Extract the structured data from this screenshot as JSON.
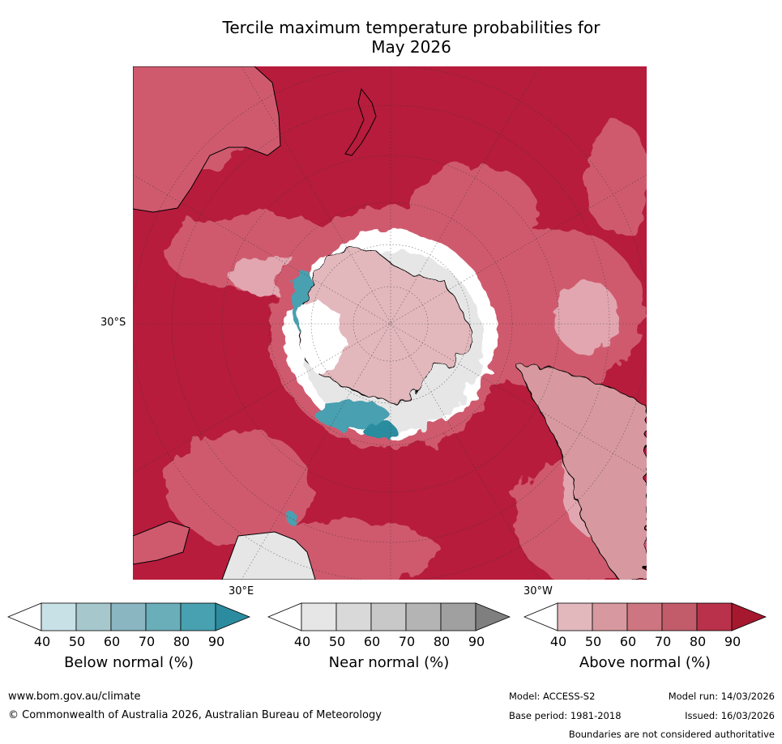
{
  "title": {
    "line1": "Tercile maximum temperature probabilities for",
    "line2": "May 2026"
  },
  "map": {
    "projection": "south-polar-stereographic",
    "lat_labels": [
      "30°S"
    ],
    "lon_labels": [
      "30°E",
      "30°W"
    ],
    "region_colors": {
      "strong_above": "#b71c3c",
      "above": "#cf5a6e",
      "mild_above": "#e2a6b0",
      "near": "#e6e6e6",
      "below": "#4aa0b0",
      "white": "#ffffff"
    }
  },
  "colorbars": [
    {
      "title": "Below normal (%)",
      "ticks": [
        "40",
        "50",
        "60",
        "70",
        "80",
        "90"
      ],
      "colors": [
        "#ffffff",
        "#c8e1e7",
        "#a6c8cd",
        "#8ab6c2",
        "#6aaeba",
        "#48a1b0",
        "#2b8c9f"
      ]
    },
    {
      "title": "Near normal (%)",
      "ticks": [
        "40",
        "50",
        "60",
        "70",
        "80",
        "90"
      ],
      "colors": [
        "#ffffff",
        "#e6e6e6",
        "#d9d9d9",
        "#c8c8c8",
        "#b4b4b4",
        "#a0a0a0",
        "#7f7f7f"
      ]
    },
    {
      "title": "Above normal (%)",
      "ticks": [
        "40",
        "50",
        "60",
        "70",
        "80",
        "90"
      ],
      "colors": [
        "#ffffff",
        "#e2b8bd",
        "#d7999f",
        "#cd7580",
        "#c35c6a",
        "#b9314a",
        "#a6182e"
      ]
    }
  ],
  "footer": {
    "url": "www.bom.gov.au/climate",
    "copyright": "© Commonwealth of Australia 2026, Australian Bureau of Meteorology",
    "model": "Model: ACCESS-S2",
    "model_run": "Model run: 14/03/2026",
    "base_period": "Base period: 1981-2018",
    "issued": "Issued: 16/03/2026",
    "disclaimer": "Boundaries are not considered authoritative"
  }
}
